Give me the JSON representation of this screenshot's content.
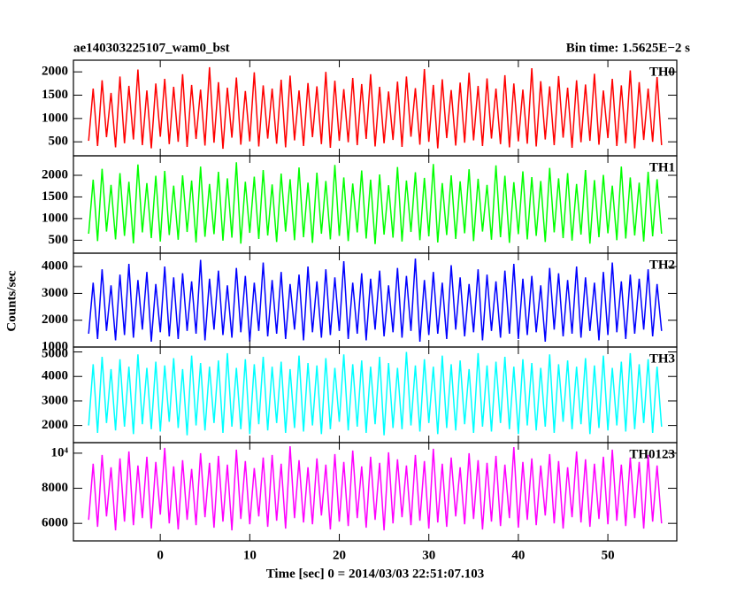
{
  "chart_data": {
    "type": "line",
    "title": "ae140303225107_wam0_bst",
    "subtitle": "Bin time: 1.5625E−2 s",
    "x_label": "Time [sec] 0 = 2014/03/03 22:51:07.103",
    "y_label": "Counts/sec",
    "xlim": [
      -9.7,
      57.7
    ],
    "xticks": [
      0,
      10,
      20,
      30,
      40,
      50
    ],
    "x": [
      -8,
      -7.5,
      -7,
      -6.5,
      -6,
      -5.5,
      -5,
      -4.5,
      -4,
      -3.5,
      -3,
      -2.5,
      -2,
      -1.5,
      -1,
      -0.5,
      0,
      0.5,
      1,
      1.5,
      2,
      2.5,
      3,
      3.5,
      4,
      4.5,
      5,
      5.5,
      6,
      6.5,
      7,
      7.5,
      8,
      8.5,
      9,
      9.5,
      10,
      10.5,
      11,
      11.5,
      12,
      12.5,
      13,
      13.5,
      14,
      14.5,
      15,
      15.5,
      16,
      16.5,
      17,
      17.5,
      18,
      18.5,
      19,
      19.5,
      20,
      20.5,
      21,
      21.5,
      22,
      22.5,
      23,
      23.5,
      24,
      24.5,
      25,
      25.5,
      26,
      26.5,
      27,
      27.5,
      28,
      28.5,
      29,
      29.5,
      30,
      30.5,
      31,
      31.5,
      32,
      32.5,
      33,
      33.5,
      34,
      34.5,
      35,
      35.5,
      36,
      36.5,
      37,
      37.5,
      38,
      38.5,
      39,
      39.5,
      40,
      40.5,
      41,
      41.5,
      42,
      42.5,
      43,
      43.5,
      44,
      44.5,
      45,
      45.5,
      46,
      46.5,
      47,
      47.5,
      48,
      48.5,
      49,
      49.5,
      50,
      50.5,
      51,
      51.5,
      52,
      52.5,
      53,
      53.5,
      54,
      54.5,
      55,
      55.5,
      56
    ],
    "series": [
      {
        "name": "TH0",
        "color": "#ff0000",
        "ylim": [
          200,
          2250
        ],
        "yticks": [
          500,
          1000,
          1500,
          2000
        ],
        "values": [
          520,
          1640,
          410,
          1820,
          600,
          1550,
          380,
          1900,
          470,
          1700,
          550,
          2050,
          430,
          1600,
          360,
          1750,
          610,
          1850,
          450,
          1680,
          500,
          1950,
          390,
          1720,
          560,
          1620,
          420,
          2100,
          480,
          1780,
          350,
          1660,
          590,
          1880,
          440,
          1590,
          510,
          1990,
          400,
          1710,
          570,
          1640,
          460,
          1830,
          380,
          1920,
          530,
          1600,
          410,
          1760,
          600,
          1690,
          450,
          2000,
          370,
          1810,
          520,
          1630,
          490,
          1870,
          430,
          1740,
          560,
          1950,
          400,
          1680,
          470,
          1580,
          540,
          1790,
          390,
          1900,
          610,
          1650,
          440,
          2060,
          500,
          1720,
          360,
          1840,
          580,
          1610,
          420,
          1770,
          480,
          1980,
          530,
          1700,
          410,
          1860,
          570,
          1640,
          450,
          1930,
          380,
          1750,
          510,
          1620,
          460,
          2080,
          400,
          1800,
          550,
          1690,
          430,
          1910,
          590,
          1660,
          370,
          1820,
          490,
          1730,
          520,
          1960,
          440,
          1600,
          580,
          1850,
          410,
          1710,
          470,
          2030,
          360,
          1780,
          540,
          1640,
          500,
          1890,
          430
        ]
      },
      {
        "name": "TH1",
        "color": "#00ff00",
        "ylim": [
          200,
          2450
        ],
        "yticks": [
          500,
          1000,
          1500,
          2000
        ],
        "values": [
          650,
          1900,
          480,
          2150,
          700,
          1780,
          520,
          2050,
          600,
          1850,
          430,
          2250,
          680,
          1820,
          550,
          1990,
          470,
          2100,
          620,
          1760,
          510,
          2000,
          690,
          1880,
          450,
          2200,
          580,
          1800,
          640,
          2080,
          490,
          1930,
          560,
          2300,
          420,
          1850,
          670,
          1970,
          530,
          2120,
          610,
          1790,
          460,
          2040,
          700,
          1910,
          500,
          2180,
          570,
          1830,
          440,
          2060,
          650,
          1870,
          520,
          2240,
          600,
          1950,
          480,
          1810,
          680,
          2110,
          540,
          1900,
          410,
          2020,
          630,
          1770,
          560,
          2190,
          470,
          1880,
          690,
          2070,
          500,
          1940,
          590,
          2260,
          450,
          1820,
          620,
          2000,
          530,
          1860,
          660,
          2140,
          480,
          1920,
          700,
          1780,
          510,
          2230,
          570,
          1990,
          440,
          1840,
          640,
          2090,
          520,
          1960,
          600,
          1870,
          460,
          2170,
          680,
          1930,
          550,
          2050,
          490,
          1800,
          630,
          2120,
          420,
          1890,
          570,
          2010,
          660,
          1760,
          500,
          2200,
          540,
          1950,
          610,
          1830,
          470,
          2080,
          590,
          1910,
          650
        ]
      },
      {
        "name": "TH2",
        "color": "#0000ff",
        "ylim": [
          1000,
          4500
        ],
        "yticks": [
          1000,
          2000,
          3000,
          4000
        ],
        "values": [
          1500,
          3400,
          1300,
          3900,
          1600,
          3300,
          1250,
          3700,
          1450,
          4100,
          1350,
          3500,
          1650,
          3800,
          1200,
          3350,
          1550,
          4000,
          1400,
          3600,
          1300,
          3750,
          1600,
          3450,
          1500,
          4250,
          1250,
          3550,
          1650,
          3850,
          1450,
          3300,
          1350,
          3950,
          1550,
          3650,
          1200,
          3400,
          1600,
          4150,
          1400,
          3500,
          1500,
          3800,
          1300,
          3350,
          1650,
          3700,
          1250,
          4000,
          1550,
          3450,
          1350,
          3900,
          1450,
          3600,
          1600,
          4200,
          1300,
          3400,
          1500,
          3750,
          1250,
          3550,
          1650,
          3850,
          1400,
          3300,
          1550,
          3950,
          1350,
          3650,
          1600,
          4300,
          1200,
          3500,
          1450,
          3800,
          1500,
          3400,
          1300,
          4050,
          1650,
          3600,
          1400,
          3350,
          1550,
          3900,
          1250,
          3700,
          1600,
          3450,
          1350,
          3850,
          1500,
          4100,
          1300,
          3550,
          1450,
          3650,
          1550,
          3300,
          1200,
          3950,
          1650,
          3750,
          1400,
          3500,
          1500,
          4000,
          1350,
          3600,
          1600,
          3400,
          1250,
          3800,
          1450,
          4150,
          1550,
          3450,
          1300,
          3700,
          1500,
          3550,
          1650,
          3900,
          1400,
          3350,
          1600
        ]
      },
      {
        "name": "TH3",
        "color": "#00ffff",
        "ylim": [
          1300,
          5200
        ],
        "yticks": [
          2000,
          3000,
          4000,
          5000
        ],
        "values": [
          2000,
          4500,
          1700,
          4800,
          2100,
          4300,
          1800,
          4700,
          1950,
          4400,
          1650,
          4900,
          2050,
          4350,
          1850,
          4600,
          1750,
          4450,
          2150,
          4750,
          1900,
          4300,
          1600,
          4850,
          2000,
          4550,
          1800,
          4400,
          2100,
          4650,
          1700,
          4950,
          1950,
          4350,
          1850,
          4700,
          1650,
          4500,
          2050,
          4800,
          1800,
          4400,
          2100,
          4600,
          1700,
          4300,
          1900,
          4850,
          1750,
          4550,
          2000,
          4450,
          1650,
          4750,
          1850,
          4350,
          2150,
          4900,
          1800,
          4500,
          1950,
          4650,
          1700,
          4400,
          2050,
          4800,
          1600,
          4550,
          1900,
          4350,
          1850,
          5000,
          2000,
          4450,
          1750,
          4700,
          2100,
          4400,
          1650,
          4850,
          1900,
          4500,
          1800,
          4650,
          2050,
          4300,
          1700,
          4950,
          1950,
          4450,
          1750,
          4600,
          2100,
          4800,
          1850,
          4400,
          1650,
          4700,
          2000,
          4550,
          1800,
          4350,
          1950,
          4900,
          1700,
          4500,
          2150,
          4650,
          1850,
          4400,
          2050,
          4750,
          1650,
          4450,
          1900,
          4850,
          1800,
          4350,
          2000,
          4600,
          1750,
          4950,
          1850,
          4500,
          2100,
          4700,
          1700,
          4400,
          1950
        ]
      },
      {
        "name": "TH0123",
        "color": "#ff00ff",
        "ylim": [
          5000,
          10600
        ],
        "yticks": [
          6000,
          8000,
          {
            "value": 10000,
            "label": "10⁴"
          }
        ],
        "values": [
          6200,
          9400,
          5800,
          9900,
          6400,
          9200,
          5600,
          9700,
          6100,
          10100,
          5900,
          9300,
          6300,
          9800,
          5700,
          9500,
          6500,
          10300,
          6000,
          9250,
          5650,
          9600,
          6200,
          9100,
          5900,
          10000,
          6350,
          9450,
          5750,
          9850,
          6100,
          9350,
          5600,
          10200,
          6250,
          9550,
          5950,
          9150,
          6400,
          9750,
          5800,
          9900,
          6150,
          9400,
          5700,
          10400,
          6300,
          9600,
          6050,
          9200,
          5950,
          9700,
          6450,
          9350,
          5650,
          9950,
          6100,
          9500,
          5850,
          10150,
          6300,
          9250,
          5750,
          9800,
          6200,
          9450,
          5600,
          10050,
          6000,
          9650,
          6350,
          9300,
          5900,
          9900,
          6150,
          9550,
          5700,
          10250,
          6050,
          9400,
          5800,
          9750,
          6400,
          9200,
          5950,
          10000,
          6250,
          9600,
          5650,
          9450,
          6100,
          9850,
          5850,
          9350,
          6300,
          10350,
          5750,
          9500,
          6200,
          9700,
          5900,
          9300,
          6450,
          9950,
          6000,
          9550,
          5700,
          9200,
          6350,
          10100,
          6050,
          9650,
          5800,
          9400,
          6250,
          9800,
          5950,
          10200,
          6150,
          9350,
          5850,
          9750,
          6300,
          9500,
          5700,
          9900,
          6100,
          9300,
          6000
        ]
      }
    ]
  }
}
